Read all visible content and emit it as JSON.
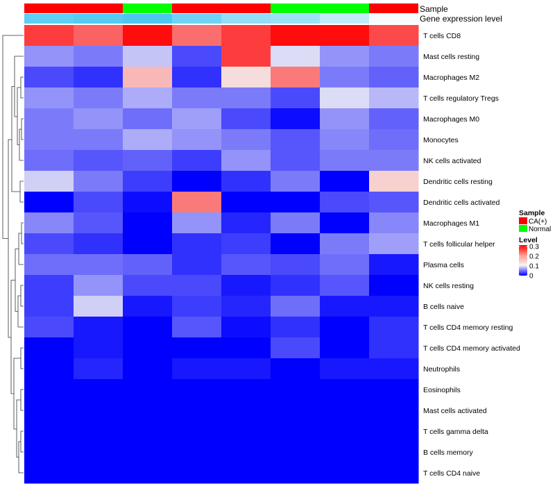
{
  "chart_data": {
    "type": "heatmap",
    "annotation_rows": [
      "Sample",
      "Gene expression level"
    ],
    "samples": [
      {
        "group": "CA(+)",
        "expr": 0.9
      },
      {
        "group": "CA(+)",
        "expr": 0.95
      },
      {
        "group": "Normal",
        "expr": 1.0
      },
      {
        "group": "CA(+)",
        "expr": 0.8
      },
      {
        "group": "CA(+)",
        "expr": 0.6
      },
      {
        "group": "Normal",
        "expr": 0.55
      },
      {
        "group": "Normal",
        "expr": 0.35
      },
      {
        "group": "CA(+)",
        "expr": 0.05
      }
    ],
    "rows": [
      "T cells CD8",
      "Mast cells resting",
      "Macrophages M2",
      "T cells regulatory  Tregs",
      "Macrophages M0",
      "Monocytes",
      "NK cells activated",
      "Dendritic cells resting",
      "Dendritic cells activated",
      "Macrophages M1",
      "T cells follicular helper",
      "Plasma cells",
      "NK cells resting",
      "B cells naive",
      "T cells CD4 memory resting",
      "T cells CD4 memory activated",
      "Neutrophils",
      "Eosinophils",
      "Mast cells activated",
      "T cells gamma delta",
      "B cells memory",
      "T cells CD4 naive"
    ],
    "values": [
      [
        0.25,
        0.22,
        0.29,
        0.21,
        0.25,
        0.29,
        0.29,
        0.24
      ],
      [
        0.06,
        0.05,
        0.08,
        0.03,
        0.25,
        0.09,
        0.06,
        0.05
      ],
      [
        0.03,
        0.02,
        0.15,
        0.02,
        0.12,
        0.2,
        0.05,
        0.04
      ],
      [
        0.06,
        0.05,
        0.07,
        0.05,
        0.05,
        0.03,
        0.09,
        0.075
      ],
      [
        0.05,
        0.06,
        0.045,
        0.065,
        0.03,
        0.005,
        0.06,
        0.04
      ],
      [
        0.05,
        0.05,
        0.07,
        0.06,
        0.05,
        0.035,
        0.055,
        0.045
      ],
      [
        0.045,
        0.035,
        0.04,
        0.025,
        0.06,
        0.035,
        0.05,
        0.05
      ],
      [
        0.085,
        0.05,
        0.025,
        0.0,
        0.02,
        0.05,
        0.0,
        0.13
      ],
      [
        0.0,
        0.03,
        0.005,
        0.2,
        0.0,
        0.0,
        0.03,
        0.035
      ],
      [
        0.055,
        0.035,
        0.0,
        0.06,
        0.015,
        0.05,
        0.0,
        0.055
      ],
      [
        0.03,
        0.02,
        0.0,
        0.02,
        0.025,
        0.0,
        0.05,
        0.065
      ],
      [
        0.045,
        0.045,
        0.04,
        0.02,
        0.035,
        0.03,
        0.045,
        0.01
      ],
      [
        0.025,
        0.06,
        0.03,
        0.03,
        0.01,
        0.02,
        0.035,
        0.0
      ],
      [
        0.025,
        0.085,
        0.01,
        0.025,
        0.015,
        0.045,
        0.01,
        0.01
      ],
      [
        0.03,
        0.01,
        0.0,
        0.035,
        0.005,
        0.02,
        0.0,
        0.02
      ],
      [
        0.0,
        0.01,
        0.0,
        0.0,
        0.0,
        0.03,
        0.0,
        0.02
      ],
      [
        0.0,
        0.015,
        0.0,
        0.01,
        0.01,
        0.0,
        0.01,
        0.01
      ],
      [
        0.0,
        0.0,
        0.0,
        0.0,
        0.0,
        0.0,
        0.0,
        0.0
      ],
      [
        0.0,
        0.0,
        0.0,
        0.0,
        0.0,
        0.0,
        0.0,
        0.0
      ],
      [
        0.0,
        0.0,
        0.0,
        0.0,
        0.0,
        0.0,
        0.0,
        0.0
      ],
      [
        0.0,
        0.0,
        0.0,
        0.0,
        0.0,
        0.0,
        0.0,
        0.0
      ],
      [
        0.0,
        0.0,
        0.0,
        0.0,
        0.0,
        0.0,
        0.0,
        0.0
      ]
    ],
    "color_scale": {
      "min": 0,
      "mid": 0.1,
      "max": 0.3,
      "low": "#0000ff",
      "midColor": "#f5f5f5",
      "high": "#ff0000"
    },
    "sample_colors": {
      "CA(+)": "#ff0000",
      "Normal": "#00ff00"
    },
    "expr_colors": {
      "low": "#ffffff",
      "high": "#4cc8f0"
    },
    "legend": {
      "sample_title": "Sample",
      "sample_entries": [
        "CA(+)",
        "Normal"
      ],
      "level_title": "Level",
      "level_ticks": [
        0.3,
        0.2,
        0.1,
        0
      ],
      "level_tick_labels": [
        "0.3",
        "0.2",
        "0.1",
        "0"
      ]
    },
    "dendrogram": "row clustering tree on the left"
  }
}
